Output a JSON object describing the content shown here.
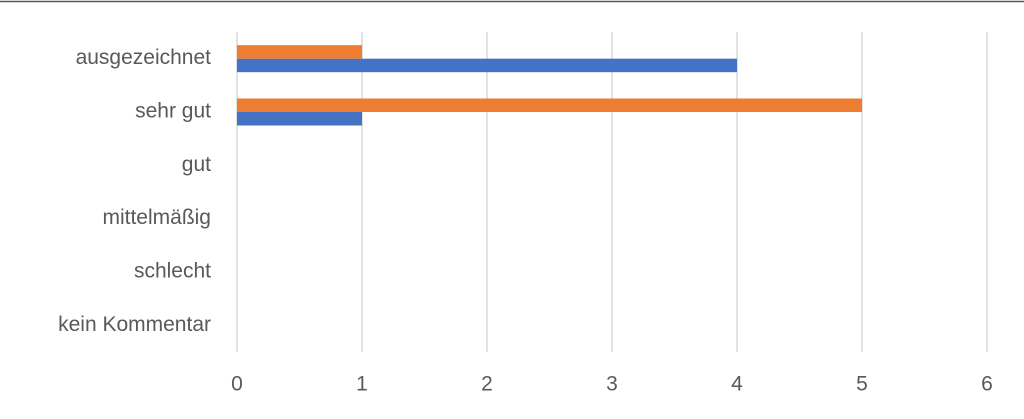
{
  "chart_data": {
    "type": "barh",
    "categories": [
      "ausgezeichnet",
      "sehr gut",
      "gut",
      "mittelmäßig",
      "schlecht",
      "kein Kommentar"
    ],
    "series": [
      {
        "color": "#4472c4",
        "values": [
          4,
          1,
          0,
          0,
          0,
          0
        ]
      },
      {
        "color": "#ed7d31",
        "values": [
          1,
          5,
          0,
          0,
          0,
          0
        ]
      }
    ],
    "xlim": [
      0,
      6
    ],
    "xticks": [
      0,
      1,
      2,
      3,
      4,
      5,
      6
    ],
    "grid": true
  }
}
